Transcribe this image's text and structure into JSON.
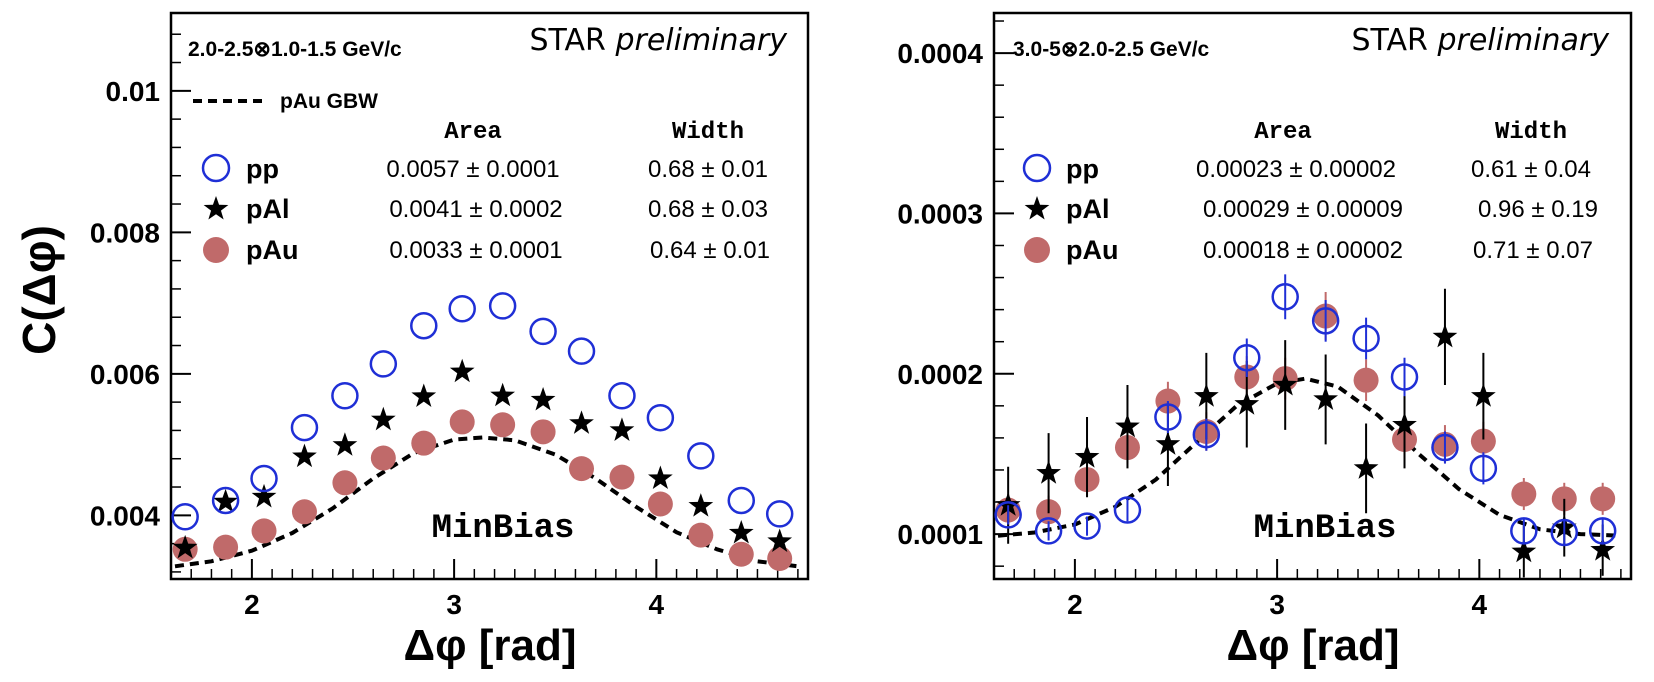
{
  "figure": {
    "ylabel": "C(Δφ)",
    "xlabel": "Δφ [rad]",
    "preliminary_prefix": "STAR",
    "preliminary_suffix": "preliminary",
    "event_class": "MinBias",
    "model_label": "pAu GBW",
    "area_header": "Area",
    "width_header": "Width",
    "colors": {
      "pp": "#1f2fd6",
      "pAl": "#000000",
      "pAu": "#c06a6a",
      "model": "#000000"
    }
  },
  "chart_data": [
    {
      "type": "scatter",
      "title": "2.0-2.5⊗1.0-1.5 GeV/c",
      "xlabel": "Δφ [rad]",
      "ylabel": "C(Δφ)",
      "xlim": [
        1.6,
        4.75
      ],
      "ylim": [
        0.0031,
        0.0111
      ],
      "xticks": [
        2,
        3,
        4
      ],
      "xtick_labels": [
        "2",
        "3",
        "4"
      ],
      "yticks": [
        0.004,
        0.006,
        0.008,
        0.01
      ],
      "ytick_labels": [
        "0.004",
        "0.006",
        "0.008",
        "0.01"
      ],
      "x": [
        1.67,
        1.87,
        2.06,
        2.26,
        2.46,
        2.65,
        2.85,
        3.04,
        3.24,
        3.44,
        3.63,
        3.83,
        4.02,
        4.22,
        4.42,
        4.61
      ],
      "series": [
        {
          "name": "pp",
          "marker": "open-circle",
          "area": "0.0057 ± 0.0001",
          "width": "0.68 ± 0.01",
          "values": [
            0.00398,
            0.00421,
            0.00452,
            0.00524,
            0.00569,
            0.00614,
            0.00668,
            0.00692,
            0.00696,
            0.0066,
            0.00632,
            0.00569,
            0.00538,
            0.00484,
            0.00421,
            0.00402
          ],
          "errors": [
            0,
            0,
            0,
            0,
            0,
            0,
            0,
            0,
            0,
            0,
            0,
            0,
            0,
            0,
            0,
            0
          ]
        },
        {
          "name": "pAl",
          "marker": "star",
          "area": "0.0041 ± 0.0002",
          "width": "0.68 ± 0.03",
          "values": [
            0.00354,
            0.00419,
            0.00426,
            0.00483,
            0.00499,
            0.00535,
            0.00568,
            0.00603,
            0.00569,
            0.00563,
            0.0053,
            0.0052,
            0.00452,
            0.00413,
            0.00375,
            0.00363
          ],
          "errors": [
            0,
            0,
            0,
            0,
            0,
            0,
            0,
            0,
            0,
            0,
            0,
            0,
            0,
            0,
            0,
            0
          ]
        },
        {
          "name": "pAu",
          "marker": "filled-circle",
          "area": "0.0033 ± 0.0001",
          "width": "0.64 ± 0.01",
          "values": [
            0.00352,
            0.00355,
            0.00378,
            0.00405,
            0.00446,
            0.00481,
            0.00502,
            0.00532,
            0.00528,
            0.00518,
            0.00466,
            0.00454,
            0.00416,
            0.00372,
            0.00345,
            0.00339
          ],
          "errors": [
            0,
            0,
            0,
            0,
            0,
            0,
            0,
            0,
            0,
            0,
            0,
            0,
            0,
            0,
            0,
            0
          ]
        }
      ],
      "model": {
        "name": "pAu GBW",
        "style": "dashed",
        "x": [
          1.62,
          1.8,
          2.0,
          2.2,
          2.4,
          2.6,
          2.8,
          3.0,
          3.14,
          3.3,
          3.5,
          3.7,
          3.9,
          4.1,
          4.3,
          4.5,
          4.7
        ],
        "y": [
          0.00328,
          0.00335,
          0.0035,
          0.00375,
          0.0041,
          0.00452,
          0.00488,
          0.00507,
          0.0051,
          0.00506,
          0.00486,
          0.00452,
          0.00412,
          0.00376,
          0.00352,
          0.00335,
          0.00328
        ]
      }
    },
    {
      "type": "scatter",
      "title": "3.0-5⊗2.0-2.5 GeV/c",
      "xlabel": "Δφ [rad]",
      "ylabel": "",
      "xlim": [
        1.6,
        4.75
      ],
      "ylim": [
        7.2e-05,
        0.000425
      ],
      "xticks": [
        2,
        3,
        4
      ],
      "xtick_labels": [
        "2",
        "3",
        "4"
      ],
      "yticks": [
        0.0001,
        0.0002,
        0.0003,
        0.0004
      ],
      "ytick_labels": [
        "0.0001",
        "0.0002",
        "0.0003",
        "0.0004"
      ],
      "x": [
        1.67,
        1.87,
        2.06,
        2.26,
        2.46,
        2.65,
        2.85,
        3.04,
        3.24,
        3.44,
        3.63,
        3.83,
        4.02,
        4.22,
        4.42,
        4.61
      ],
      "series": [
        {
          "name": "pp",
          "marker": "open-circle",
          "area": "0.00023 ± 0.00002",
          "width": "0.61 ± 0.04",
          "values": [
            0.000112,
            0.000102,
            0.000105,
            0.000115,
            0.000173,
            0.000162,
            0.00021,
            0.000248,
            0.000233,
            0.000222,
            0.000198,
            0.000154,
            0.000141,
            0.000102,
            0.000101,
            0.000102
          ],
          "errors": [
            6e-06,
            6e-06,
            6e-06,
            7e-06,
            1e-05,
            1e-05,
            1.2e-05,
            1.4e-05,
            1.3e-05,
            1.3e-05,
            1.2e-05,
            1e-05,
            1e-05,
            8e-06,
            8e-06,
            8e-06
          ]
        },
        {
          "name": "pAl",
          "marker": "star",
          "area": "0.00029 ± 0.00009",
          "width": "0.96 ± 0.19",
          "values": [
            0.000118,
            0.000138,
            0.000148,
            0.000167,
            0.000156,
            0.000186,
            0.000181,
            0.000193,
            0.000184,
            0.000141,
            0.000168,
            0.000223,
            0.000186,
            8.9e-05,
            0.000104,
            9e-05
          ],
          "errors": [
            2.4e-05,
            2.5e-05,
            2.5e-05,
            2.6e-05,
            2.6e-05,
            2.7e-05,
            2.7e-05,
            2.8e-05,
            2.8e-05,
            2.8e-05,
            2.7e-05,
            3e-05,
            2.7e-05,
            1.6e-05,
            1.8e-05,
            1.6e-05
          ]
        },
        {
          "name": "pAu",
          "marker": "filled-circle",
          "area": "0.00018 ± 0.00002",
          "width": "0.71 ± 0.07",
          "values": [
            0.000115,
            0.000114,
            0.000134,
            0.000154,
            0.000183,
            0.000164,
            0.000198,
            0.000197,
            0.000236,
            0.000196,
            0.000159,
            0.000156,
            0.000158,
            0.000125,
            0.000122,
            0.000122
          ],
          "errors": [
            1e-05,
            1e-05,
            1e-05,
            1e-05,
            1.2e-05,
            1.2e-05,
            1.3e-05,
            1.3e-05,
            1.5e-05,
            1.3e-05,
            1.2e-05,
            1.2e-05,
            1.2e-05,
            1e-05,
            1e-05,
            1e-05
          ]
        }
      ],
      "model": {
        "name": "pAu GBW",
        "style": "dashed",
        "x": [
          1.62,
          1.8,
          2.0,
          2.2,
          2.4,
          2.6,
          2.8,
          3.0,
          3.14,
          3.3,
          3.5,
          3.7,
          3.9,
          4.1,
          4.3,
          4.5,
          4.7
        ],
        "y": [
          9.9e-05,
          0.000101,
          0.000106,
          0.000117,
          0.000134,
          0.000157,
          0.00018,
          0.000194,
          0.000197,
          0.000192,
          0.000174,
          0.00015,
          0.000128,
          0.000112,
          0.000103,
          0.0001,
          9.9e-05
        ]
      }
    }
  ]
}
